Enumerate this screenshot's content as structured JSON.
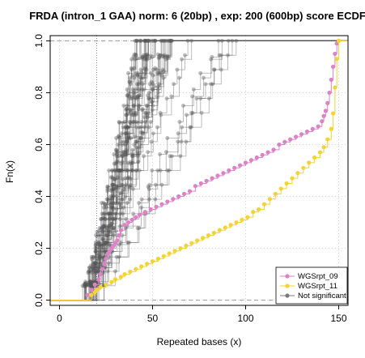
{
  "chart_data": {
    "type": "scatter",
    "title": "FRDA (intron_1 GAA) norm: 6 (20bp) , exp: 200 (600bp) score ECDF",
    "xlabel": "Repeated bases (x)",
    "ylabel": "Fn(x)",
    "xlim": [
      -5,
      155
    ],
    "ylim": [
      -0.02,
      1.02
    ],
    "x_ticks": [
      0,
      50,
      100,
      150
    ],
    "y_ticks": [
      0.0,
      0.2,
      0.4,
      0.6,
      0.8,
      1.0
    ],
    "x_tick_labels": [
      "0",
      "50",
      "100",
      "150"
    ],
    "y_tick_labels": [
      "0.0",
      "0.2",
      "0.4",
      "0.6",
      "0.8",
      "1.0"
    ],
    "grid": true,
    "hlines": [
      0,
      1
    ],
    "vline": 20,
    "legend_position": "bottom-right",
    "legend": [
      {
        "name": "WGSrpt_09",
        "color": "#de82c8"
      },
      {
        "name": "WGSrpt_11",
        "color": "#f5d336"
      },
      {
        "name": "Not significant",
        "color": "#7a7a7a"
      }
    ],
    "colors": {
      "wgsrpt_09": "#de82c8",
      "wgsrpt_11": "#f5d336",
      "not_significant": "#555555",
      "vline": "#7b7bdc",
      "hline": "#9a9a9a"
    },
    "series": [
      {
        "name": "WGSrpt_09",
        "color": "#de82c8",
        "x": [
          15,
          17,
          19,
          21,
          22,
          23,
          24,
          25,
          26,
          27,
          28,
          29,
          30,
          31,
          32,
          33,
          35,
          37,
          39,
          41,
          43,
          46,
          49,
          52,
          55,
          58,
          61,
          64,
          67,
          70,
          73,
          76,
          79,
          82,
          85,
          88,
          91,
          94,
          97,
          100,
          103,
          106,
          109,
          112,
          115,
          118,
          121,
          124,
          127,
          130,
          133,
          136,
          139,
          141,
          142,
          143,
          144,
          145,
          146,
          147,
          148,
          149,
          150
        ],
        "y": [
          0.02,
          0.04,
          0.06,
          0.08,
          0.1,
          0.12,
          0.14,
          0.16,
          0.18,
          0.19,
          0.2,
          0.21,
          0.22,
          0.23,
          0.25,
          0.27,
          0.29,
          0.3,
          0.31,
          0.32,
          0.33,
          0.34,
          0.35,
          0.36,
          0.37,
          0.38,
          0.39,
          0.4,
          0.41,
          0.42,
          0.44,
          0.45,
          0.46,
          0.47,
          0.48,
          0.49,
          0.5,
          0.51,
          0.52,
          0.53,
          0.54,
          0.55,
          0.56,
          0.57,
          0.58,
          0.6,
          0.61,
          0.62,
          0.63,
          0.64,
          0.65,
          0.66,
          0.67,
          0.69,
          0.71,
          0.73,
          0.76,
          0.8,
          0.85,
          0.9,
          0.95,
          0.99,
          1.0
        ]
      },
      {
        "name": "WGSrpt_11",
        "color": "#f5d336",
        "x": [
          17,
          19,
          20,
          22,
          25,
          28,
          30,
          33,
          35,
          38,
          41,
          44,
          47,
          50,
          53,
          56,
          59,
          62,
          65,
          68,
          71,
          74,
          77,
          80,
          83,
          86,
          89,
          92,
          95,
          98,
          101,
          104,
          107,
          110,
          113,
          116,
          119,
          122,
          125,
          128,
          131,
          134,
          137,
          140,
          142,
          144,
          146,
          147,
          148,
          149,
          150
        ],
        "y": [
          0.02,
          0.03,
          0.04,
          0.05,
          0.06,
          0.07,
          0.08,
          0.09,
          0.1,
          0.11,
          0.12,
          0.13,
          0.14,
          0.15,
          0.16,
          0.17,
          0.18,
          0.19,
          0.2,
          0.21,
          0.22,
          0.23,
          0.24,
          0.25,
          0.26,
          0.27,
          0.28,
          0.29,
          0.3,
          0.31,
          0.32,
          0.34,
          0.35,
          0.37,
          0.39,
          0.41,
          0.43,
          0.45,
          0.47,
          0.49,
          0.51,
          0.53,
          0.55,
          0.57,
          0.59,
          0.62,
          0.66,
          0.72,
          0.82,
          0.93,
          1.0
        ]
      },
      {
        "name": "Not significant",
        "color": "#555555",
        "count": 40
      }
    ]
  }
}
